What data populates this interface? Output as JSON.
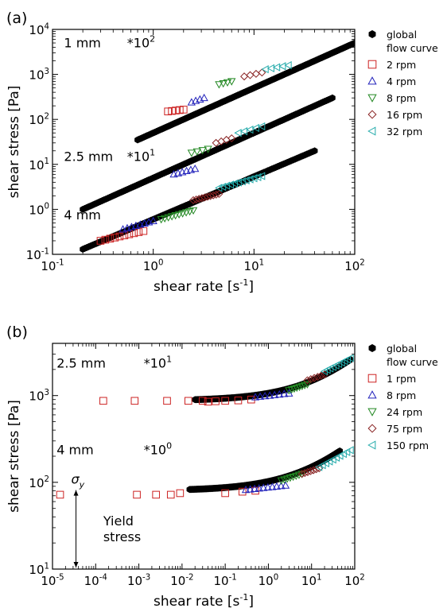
{
  "chart_data": [
    {
      "type": "scatter",
      "panel_label": "(a)",
      "xlabel_main": "shear rate [s",
      "xlabel_exp": "-1",
      "xlabel_end": "]",
      "ylabel": "shear stress [Pa]",
      "xscale": "log",
      "yscale": "log",
      "xlim": [
        0.1,
        100
      ],
      "ylim": [
        0.1,
        10000
      ],
      "xticks": [
        {
          "v": 0.1,
          "b": "10",
          "e": "-1"
        },
        {
          "v": 1,
          "b": "10",
          "e": "0"
        },
        {
          "v": 10,
          "b": "10",
          "e": "1"
        },
        {
          "v": 100,
          "b": "10",
          "e": "2"
        }
      ],
      "yticks": [
        {
          "v": 0.1,
          "b": "10",
          "e": "-1"
        },
        {
          "v": 1,
          "b": "10",
          "e": "0"
        },
        {
          "v": 10,
          "b": "10",
          "e": "1"
        },
        {
          "v": 100,
          "b": "10",
          "e": "2"
        },
        {
          "v": 1000,
          "b": "10",
          "e": "3"
        },
        {
          "v": 10000,
          "b": "10",
          "e": "4"
        }
      ],
      "annotations": [
        {
          "text": "1 mm",
          "x": 0.13,
          "y": 4000
        },
        {
          "text": "*10",
          "exp": "2",
          "x": 0.55,
          "y": 4000
        },
        {
          "text": "2.5 mm",
          "x": 0.13,
          "y": 12
        },
        {
          "text": "*10",
          "exp": "1",
          "x": 0.55,
          "y": 12
        },
        {
          "text": "4 mm",
          "x": 0.13,
          "y": 0.6
        }
      ],
      "legend": [
        {
          "label": "global",
          "label2": "flow curve",
          "marker": "hexagon",
          "color": "#000000"
        },
        {
          "label": "2   rpm",
          "marker": "square",
          "color": "#cc2222"
        },
        {
          "label": "4   rpm",
          "marker": "triangle-up",
          "color": "#2222bb"
        },
        {
          "label": "8   rpm",
          "marker": "triangle-down",
          "color": "#228822"
        },
        {
          "label": "16 rpm",
          "marker": "diamond",
          "color": "#882222"
        },
        {
          "label": "32 rpm",
          "marker": "triangle-left",
          "color": "#22aaaa"
        }
      ],
      "series": [
        {
          "name": "global flow curve (1 mm)",
          "marker": "hexagon",
          "color": "#000000",
          "filled": true,
          "fit": {
            "x0": 0.7,
            "x1": 100,
            "y0": 35,
            "y1": 5000
          },
          "n": 140
        },
        {
          "name": "global flow curve (2.5 mm)",
          "marker": "hexagon",
          "color": "#000000",
          "filled": true,
          "fit": {
            "x0": 0.2,
            "x1": 60,
            "y0": 1.0,
            "y1": 300
          },
          "n": 130
        },
        {
          "name": "global flow curve (4 mm)",
          "marker": "hexagon",
          "color": "#000000",
          "filled": true,
          "fit": {
            "x0": 0.2,
            "x1": 40,
            "y0": 0.13,
            "y1": 20
          },
          "n": 120
        },
        {
          "name": "2 rpm",
          "marker": "square",
          "color": "#cc2222",
          "filled": false,
          "groups": [
            {
              "x0": 1.4,
              "x1": 2.0,
              "y0": 150,
              "y1": 165,
              "n": 5
            },
            {
              "x0": 0.3,
              "x1": 0.8,
              "y0": 0.2,
              "y1": 0.33,
              "n": 10
            }
          ]
        },
        {
          "name": "4 rpm",
          "marker": "triangle-up",
          "color": "#2222bb",
          "filled": false,
          "groups": [
            {
              "x0": 2.4,
              "x1": 3.2,
              "y0": 240,
              "y1": 300,
              "n": 4
            },
            {
              "x0": 1.6,
              "x1": 2.6,
              "y0": 6,
              "y1": 8,
              "n": 6
            },
            {
              "x0": 0.5,
              "x1": 1.0,
              "y0": 0.36,
              "y1": 0.55,
              "n": 8
            }
          ]
        },
        {
          "name": "8 rpm",
          "marker": "triangle-down",
          "color": "#228822",
          "filled": false,
          "groups": [
            {
              "x0": 4.5,
              "x1": 6.0,
              "y0": 600,
              "y1": 700,
              "n": 4
            },
            {
              "x0": 2.4,
              "x1": 3.5,
              "y0": 18,
              "y1": 22,
              "n": 4
            },
            {
              "x0": 1.2,
              "x1": 2.5,
              "y0": 0.6,
              "y1": 0.95,
              "n": 10
            }
          ]
        },
        {
          "name": "16 rpm",
          "marker": "diamond",
          "color": "#882222",
          "filled": false,
          "groups": [
            {
              "x0": 8.0,
              "x1": 12.0,
              "y0": 900,
              "y1": 1100,
              "n": 4
            },
            {
              "x0": 4.2,
              "x1": 6.0,
              "y0": 30,
              "y1": 38,
              "n": 4
            },
            {
              "x0": 2.5,
              "x1": 4.5,
              "y0": 1.6,
              "y1": 2.2,
              "n": 10
            }
          ]
        },
        {
          "name": "32 rpm",
          "marker": "triangle-left",
          "color": "#22aaaa",
          "filled": false,
          "groups": [
            {
              "x0": 13,
              "x1": 22,
              "y0": 1300,
              "y1": 1600,
              "n": 5
            },
            {
              "x0": 7,
              "x1": 12,
              "y0": 50,
              "y1": 70,
              "n": 5
            },
            {
              "x0": 4.5,
              "x1": 12,
              "y0": 3.0,
              "y1": 5.5,
              "n": 12
            }
          ]
        }
      ]
    },
    {
      "type": "scatter",
      "panel_label": "(b)",
      "xlabel_main": "shear rate [s",
      "xlabel_exp": "-1",
      "xlabel_end": "]",
      "ylabel": "shear stress [Pa]",
      "xscale": "log",
      "yscale": "log",
      "xlim": [
        1e-05,
        100
      ],
      "ylim": [
        10,
        4000
      ],
      "xticks": [
        {
          "v": 1e-05,
          "b": "10",
          "e": "-5"
        },
        {
          "v": 0.0001,
          "b": "10",
          "e": "-4"
        },
        {
          "v": 0.001,
          "b": "10",
          "e": "-3"
        },
        {
          "v": 0.01,
          "b": "10",
          "e": "-2"
        },
        {
          "v": 0.1,
          "b": "10",
          "e": "-1"
        },
        {
          "v": 1,
          "b": "10",
          "e": "0"
        },
        {
          "v": 10,
          "b": "10",
          "e": "1"
        },
        {
          "v": 100,
          "b": "10",
          "e": "2"
        }
      ],
      "yticks": [
        {
          "v": 10,
          "b": "10",
          "e": "1"
        },
        {
          "v": 100,
          "b": "10",
          "e": "2"
        },
        {
          "v": 1000,
          "b": "10",
          "e": "3"
        }
      ],
      "annotations": [
        {
          "text": "2.5 mm",
          "x": 1.25e-05,
          "y": 2100
        },
        {
          "text": "*10",
          "exp": "1",
          "x": 0.0013,
          "y": 2100
        },
        {
          "text": "4 mm",
          "x": 1.25e-05,
          "y": 210
        },
        {
          "text": "*10",
          "exp": "0",
          "x": 0.0013,
          "y": 210
        },
        {
          "text": "Yield",
          "x": 0.00015,
          "y": 32
        },
        {
          "text": "stress",
          "x": 0.00015,
          "y": 21
        }
      ],
      "sigma_label": "σ",
      "sigma_sub": "y",
      "sigma_arrow": {
        "x": 3.5e-05,
        "y_from": 78,
        "y_to": 10
      },
      "legend": [
        {
          "label": "global",
          "label2": "flow curve",
          "marker": "hexagon",
          "color": "#000000"
        },
        {
          "label": "1 rpm",
          "marker": "square",
          "color": "#cc2222"
        },
        {
          "label": "8 rpm",
          "marker": "triangle-up",
          "color": "#2222bb"
        },
        {
          "label": "24 rpm",
          "marker": "triangle-down",
          "color": "#228822"
        },
        {
          "label": "75 rpm",
          "marker": "diamond",
          "color": "#882222"
        },
        {
          "label": "150 rpm",
          "marker": "triangle-left",
          "color": "#22aaaa"
        }
      ],
      "series": [
        {
          "name": "global flow curve (2.5 mm)",
          "marker": "hexagon",
          "color": "#000000",
          "filled": true,
          "curve": {
            "x0": 0.02,
            "x1": 80,
            "y0": 870,
            "y1": 2600,
            "n": 0.5
          },
          "n": 180
        },
        {
          "name": "global flow curve (4 mm)",
          "marker": "hexagon",
          "color": "#000000",
          "filled": true,
          "curve": {
            "x0": 0.015,
            "x1": 45,
            "y0": 80,
            "y1": 230,
            "n": 0.5
          },
          "n": 180
        },
        {
          "name": "1 rpm",
          "marker": "square",
          "color": "#cc2222",
          "filled": false,
          "points": [
            [
              1.5e-05,
              72
            ],
            [
              0.0009,
              72
            ],
            [
              0.0025,
              72
            ],
            [
              0.0055,
              72
            ],
            [
              0.009,
              75
            ],
            [
              0.00015,
              870
            ],
            [
              0.0008,
              870
            ],
            [
              0.0045,
              870
            ],
            [
              0.014,
              870
            ],
            [
              0.03,
              870
            ],
            [
              0.04,
              850
            ],
            [
              0.06,
              860
            ],
            [
              0.1,
              870
            ],
            [
              0.2,
              880
            ],
            [
              0.4,
              900
            ],
            [
              0.1,
              75
            ],
            [
              0.25,
              78
            ],
            [
              0.5,
              80
            ]
          ]
        },
        {
          "name": "8 rpm",
          "marker": "triangle-up",
          "color": "#2222bb",
          "filled": false,
          "groups": [
            {
              "x0": 0.5,
              "x1": 3.0,
              "y0": 960,
              "y1": 1060,
              "n": 8
            },
            {
              "x0": 0.3,
              "x1": 2.5,
              "y0": 82,
              "y1": 92,
              "n": 10
            }
          ]
        },
        {
          "name": "24 rpm",
          "marker": "triangle-down",
          "color": "#228822",
          "filled": false,
          "groups": [
            {
              "x0": 3.0,
              "x1": 8.0,
              "y0": 1150,
              "y1": 1350,
              "n": 8
            },
            {
              "x0": 2.0,
              "x1": 6.0,
              "y0": 105,
              "y1": 125,
              "n": 8
            }
          ]
        },
        {
          "name": "75 rpm",
          "marker": "diamond",
          "color": "#882222",
          "filled": false,
          "groups": [
            {
              "x0": 8.0,
              "x1": 20.0,
              "y0": 1500,
              "y1": 1750,
              "n": 6
            },
            {
              "x0": 6.0,
              "x1": 15.0,
              "y0": 125,
              "y1": 145,
              "n": 7
            }
          ]
        },
        {
          "name": "150 rpm",
          "marker": "triangle-left",
          "color": "#22aaaa",
          "filled": false,
          "groups": [
            {
              "x0": 20,
              "x1": 80,
              "y0": 1900,
              "y1": 2700,
              "n": 10
            },
            {
              "x0": 15,
              "x1": 80,
              "y0": 150,
              "y1": 235,
              "n": 10
            }
          ]
        }
      ]
    }
  ]
}
